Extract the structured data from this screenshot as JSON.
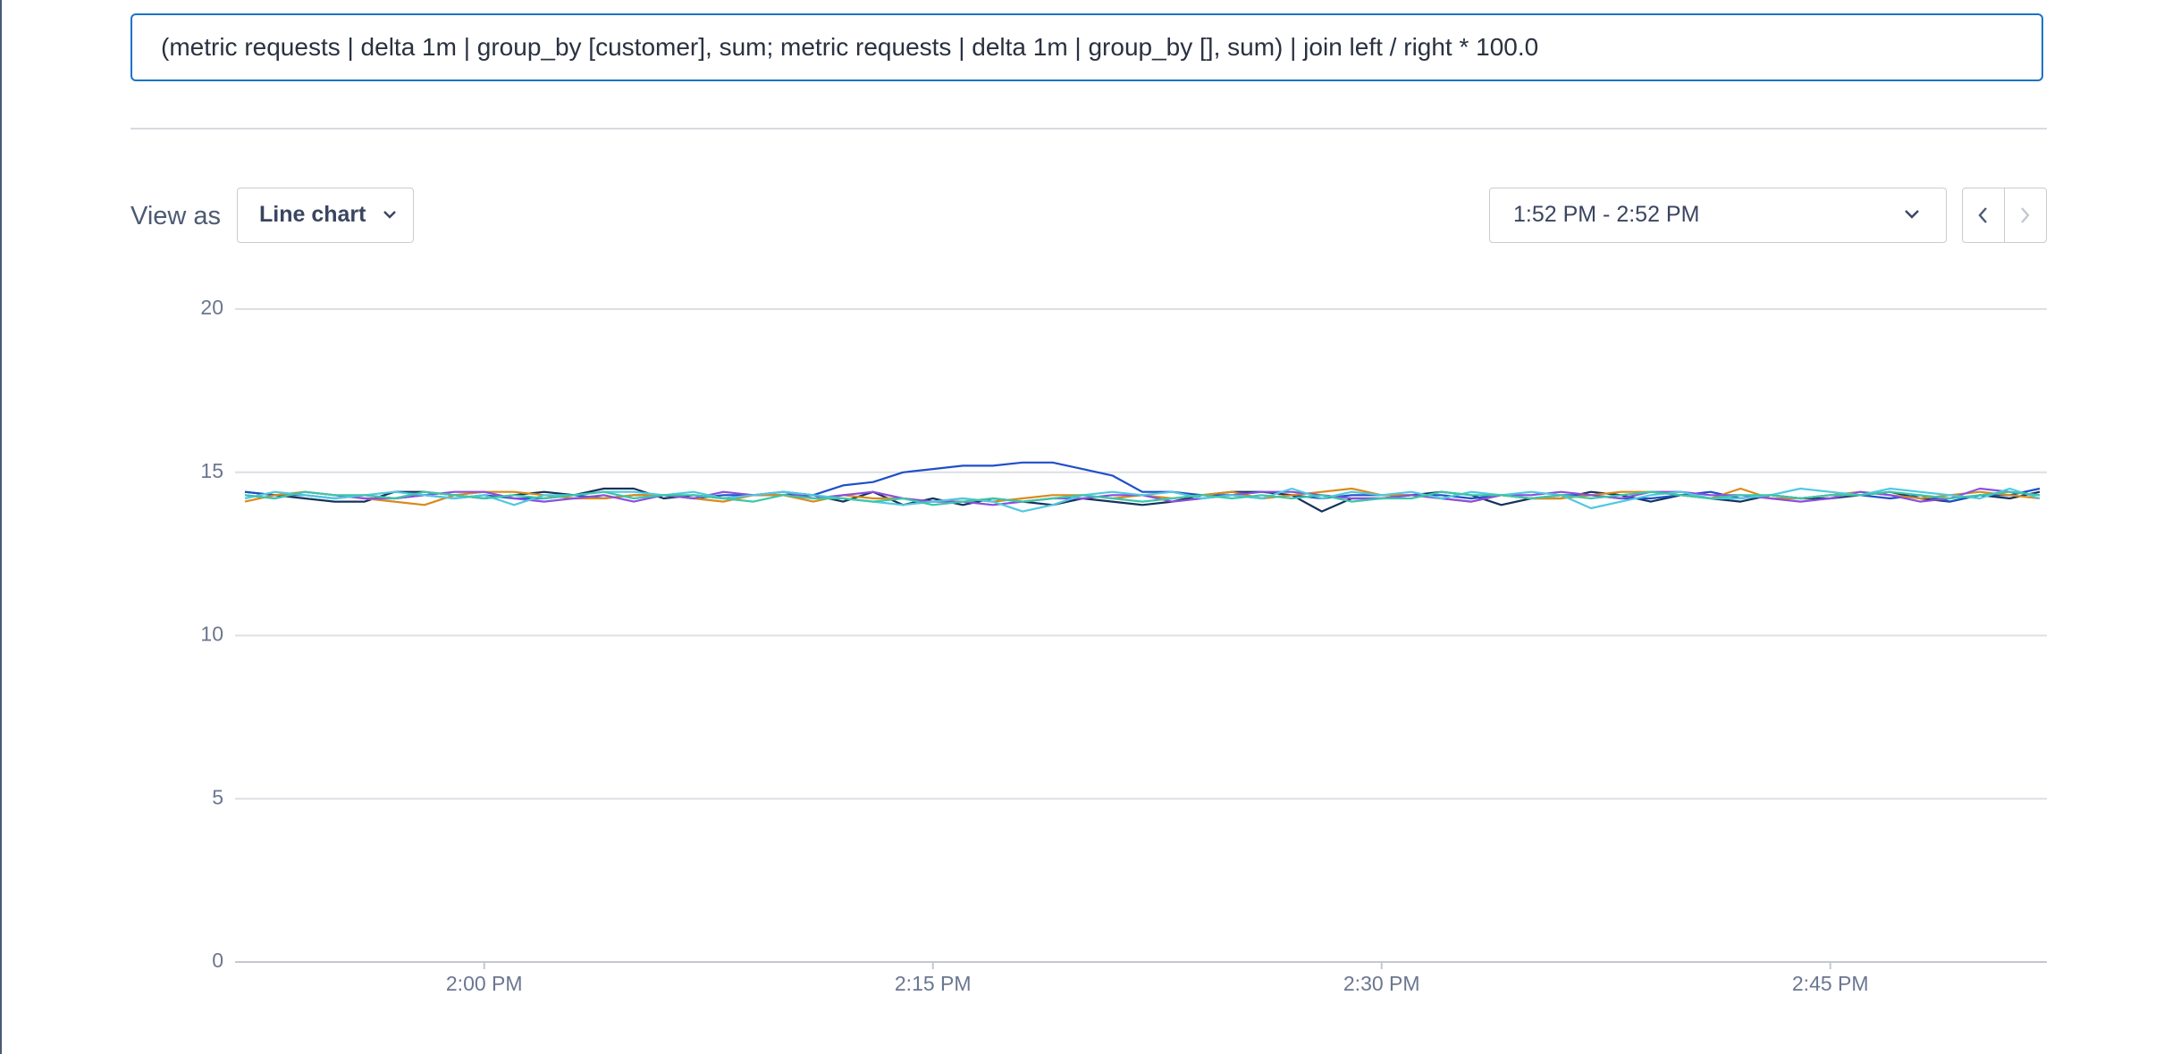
{
  "query": "(metric requests | delta 1m | group_by [customer], sum; metric requests | delta 1m | group_by [], sum) | join left / right * 100.0",
  "view_as_label": "View as",
  "view_mode": "Line chart",
  "time_range": "1:52 PM - 2:52 PM",
  "chart_data": {
    "type": "line",
    "categories": [
      null,
      null,
      null,
      null,
      null,
      null,
      null,
      null,
      "2:00 PM",
      null,
      null,
      null,
      null,
      null,
      null,
      null,
      null,
      null,
      null,
      null,
      null,
      null,
      null,
      "2:15 PM",
      null,
      null,
      null,
      null,
      null,
      null,
      null,
      null,
      null,
      null,
      null,
      null,
      null,
      null,
      "2:30 PM",
      null,
      null,
      null,
      null,
      null,
      null,
      null,
      null,
      null,
      null,
      null,
      null,
      null,
      null,
      "2:45 PM",
      null,
      null,
      null,
      null,
      null,
      null,
      null
    ],
    "ylim": [
      0,
      20
    ],
    "yticks": [
      0,
      5,
      10,
      15,
      20
    ],
    "grid": true,
    "series": [
      {
        "color": "#14325c",
        "values": [
          14.4,
          14.3,
          14.2,
          14.1,
          14.1,
          14.4,
          14.4,
          14.3,
          14.2,
          14.3,
          14.4,
          14.3,
          14.5,
          14.5,
          14.2,
          14.3,
          14.2,
          14.3,
          14.3,
          14.3,
          14.1,
          14.4,
          14.0,
          14.2,
          14.0,
          14.2,
          14.1,
          14.0,
          14.2,
          14.1,
          14.0,
          14.1,
          14.3,
          14.4,
          14.4,
          14.3,
          13.8,
          14.2,
          14.2,
          14.3,
          14.4,
          14.3,
          14.0,
          14.2,
          14.2,
          14.4,
          14.3,
          14.1,
          14.3,
          14.2,
          14.1,
          14.3,
          14.2,
          14.2,
          14.3,
          14.4,
          14.2,
          14.1,
          14.3,
          14.2,
          14.4
        ]
      },
      {
        "color": "#1f4fc8",
        "values": [
          14.4,
          14.3,
          14.3,
          14.2,
          14.3,
          14.2,
          14.3,
          14.2,
          14.3,
          14.2,
          14.2,
          14.3,
          14.2,
          14.3,
          14.3,
          14.2,
          14.3,
          14.3,
          14.4,
          14.3,
          14.6,
          14.7,
          15.0,
          15.1,
          15.2,
          15.2,
          15.3,
          15.3,
          15.1,
          14.9,
          14.4,
          14.4,
          14.3,
          14.3,
          14.2,
          14.3,
          14.2,
          14.3,
          14.3,
          14.3,
          14.3,
          14.2,
          14.3,
          14.2,
          14.3,
          14.3,
          14.2,
          14.2,
          14.3,
          14.4,
          14.2,
          14.3,
          14.2,
          14.3,
          14.3,
          14.2,
          14.3,
          14.1,
          14.3,
          14.3,
          14.5
        ]
      },
      {
        "color": "#d98a1a",
        "values": [
          14.1,
          14.3,
          14.4,
          14.3,
          14.2,
          14.1,
          14.0,
          14.3,
          14.4,
          14.4,
          14.3,
          14.2,
          14.2,
          14.3,
          14.3,
          14.2,
          14.1,
          14.3,
          14.3,
          14.1,
          14.3,
          14.2,
          14.2,
          14.1,
          14.2,
          14.1,
          14.2,
          14.3,
          14.3,
          14.2,
          14.3,
          14.2,
          14.3,
          14.4,
          14.2,
          14.3,
          14.4,
          14.5,
          14.3,
          14.3,
          14.2,
          14.1,
          14.3,
          14.2,
          14.2,
          14.3,
          14.4,
          14.4,
          14.3,
          14.2,
          14.5,
          14.2,
          14.2,
          14.3,
          14.4,
          14.3,
          14.2,
          14.3,
          14.4,
          14.3,
          14.2
        ]
      },
      {
        "color": "#8a4fe0",
        "values": [
          14.3,
          14.2,
          14.4,
          14.3,
          14.2,
          14.2,
          14.3,
          14.4,
          14.4,
          14.2,
          14.1,
          14.2,
          14.3,
          14.1,
          14.3,
          14.2,
          14.4,
          14.3,
          14.4,
          14.2,
          14.3,
          14.4,
          14.2,
          14.1,
          14.1,
          14.0,
          14.1,
          14.2,
          14.2,
          14.3,
          14.3,
          14.1,
          14.2,
          14.3,
          14.4,
          14.4,
          14.3,
          14.2,
          14.2,
          14.3,
          14.2,
          14.1,
          14.3,
          14.3,
          14.4,
          14.3,
          14.2,
          14.4,
          14.4,
          14.3,
          14.3,
          14.2,
          14.1,
          14.2,
          14.4,
          14.3,
          14.1,
          14.2,
          14.5,
          14.4,
          14.3
        ]
      },
      {
        "color": "#4fc9e0",
        "values": [
          14.2,
          14.4,
          14.3,
          14.2,
          14.3,
          14.4,
          14.3,
          14.2,
          14.3,
          14.0,
          14.3,
          14.3,
          14.4,
          14.4,
          14.3,
          14.4,
          14.2,
          14.3,
          14.4,
          14.3,
          14.2,
          14.1,
          14.0,
          14.1,
          14.2,
          14.1,
          13.8,
          14.0,
          14.3,
          14.4,
          14.3,
          14.4,
          14.2,
          14.3,
          14.2,
          14.5,
          14.2,
          14.4,
          14.3,
          14.4,
          14.2,
          14.4,
          14.3,
          14.4,
          14.3,
          13.9,
          14.1,
          14.3,
          14.4,
          14.2,
          14.2,
          14.3,
          14.5,
          14.4,
          14.3,
          14.5,
          14.4,
          14.3,
          14.2,
          14.5,
          14.2
        ]
      },
      {
        "color": "#3cc7a8",
        "values": [
          14.3,
          14.2,
          14.4,
          14.3,
          14.3,
          14.2,
          14.4,
          14.3,
          14.2,
          14.3,
          14.2,
          14.3,
          14.4,
          14.2,
          14.3,
          14.3,
          14.2,
          14.1,
          14.3,
          14.2,
          14.2,
          14.1,
          14.2,
          14.0,
          14.1,
          14.2,
          14.1,
          14.2,
          14.3,
          14.2,
          14.1,
          14.2,
          14.3,
          14.2,
          14.3,
          14.2,
          14.3,
          14.1,
          14.2,
          14.2,
          14.4,
          14.3,
          14.3,
          14.2,
          14.3,
          14.2,
          14.3,
          14.4,
          14.3,
          14.2,
          14.3,
          14.3,
          14.2,
          14.3,
          14.3,
          14.4,
          14.3,
          14.2,
          14.3,
          14.4,
          14.3
        ]
      }
    ]
  }
}
